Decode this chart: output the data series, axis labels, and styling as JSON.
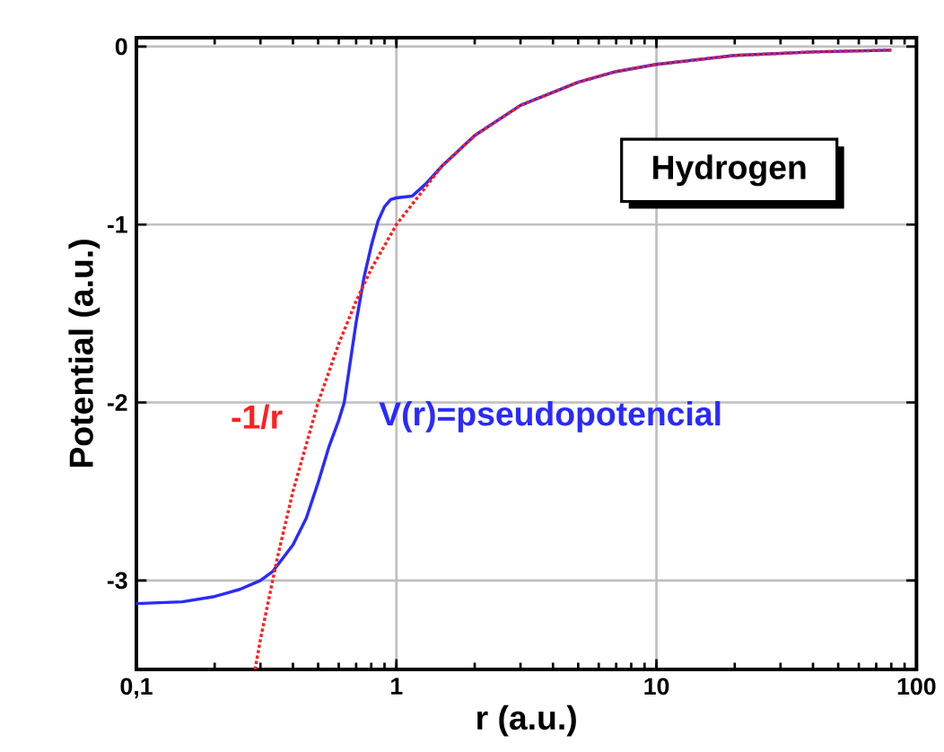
{
  "chart_data": {
    "type": "line",
    "xlabel": "r (a.u.)",
    "ylabel": "Potential (a.u.)",
    "annotations": [
      "Hydrogen"
    ],
    "log": "x",
    "grid": true,
    "xlim": [
      0.1,
      100
    ],
    "ylim": [
      -3.5,
      0.05
    ],
    "xticks": [
      {
        "value": 0.1,
        "label": "0,1"
      },
      1,
      10,
      100
    ],
    "yticks": [
      -3,
      -2,
      -1,
      0
    ],
    "series": [
      {
        "name": "V(r)=pseudopotencial",
        "color": "#2a2aff",
        "line_style": "solid",
        "x": [
          0.1,
          0.15,
          0.2,
          0.25,
          0.3,
          0.334,
          0.4,
          0.45,
          0.5,
          0.55,
          0.6,
          0.63,
          0.7,
          0.75,
          0.8,
          0.85,
          0.9,
          0.95,
          1.0,
          1.15,
          1.3,
          1.5,
          2,
          3,
          5,
          7,
          10,
          20,
          40,
          80
        ],
        "values": [
          -3.13,
          -3.12,
          -3.09,
          -3.05,
          -3.0,
          -2.95,
          -2.8,
          -2.65,
          -2.45,
          -2.25,
          -2.1,
          -2.0,
          -1.55,
          -1.3,
          -1.12,
          -0.98,
          -0.9,
          -0.86,
          -0.85,
          -0.84,
          -0.77,
          -0.67,
          -0.5,
          -0.33,
          -0.2,
          -0.14,
          -0.1,
          -0.05,
          -0.03,
          -0.02
        ]
      },
      {
        "name": "-1/r",
        "color": "#ff2020",
        "line_style": "dotted",
        "x": [
          0.286,
          0.3,
          0.35,
          0.4,
          0.5,
          0.6,
          0.7,
          0.8,
          1,
          1.5,
          2,
          3,
          5,
          7,
          10,
          20,
          40,
          80
        ],
        "values": [
          -3.5,
          -3.33,
          -2.86,
          -2.5,
          -2.0,
          -1.67,
          -1.43,
          -1.25,
          -1.0,
          -0.67,
          -0.5,
          -0.33,
          -0.2,
          -0.14,
          -0.1,
          -0.05,
          -0.03,
          -0.02
        ]
      }
    ]
  }
}
